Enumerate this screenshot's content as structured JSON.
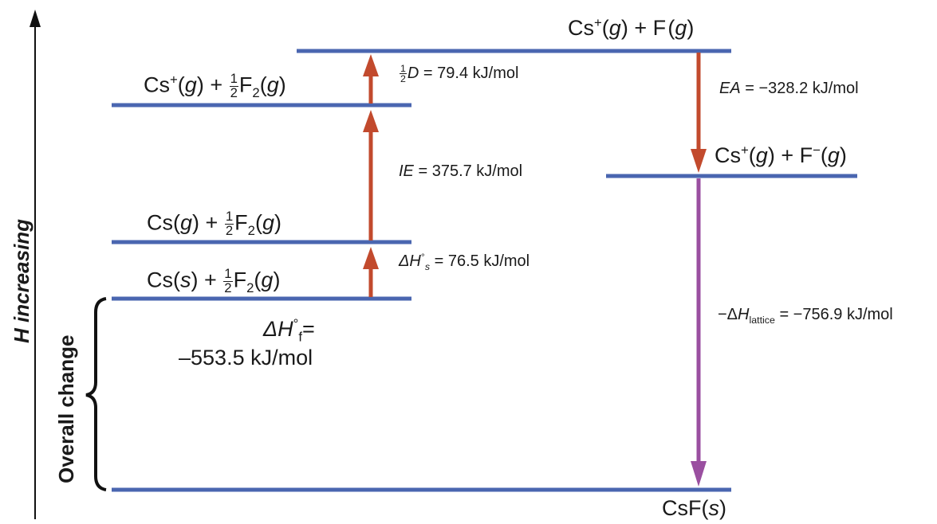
{
  "axis": {
    "label": "H increasing"
  },
  "brace": {
    "label": "Overall change"
  },
  "states": {
    "cs_g_f_g": {
      "species": "Cs",
      "charge": "+",
      "phase": "g",
      "plus": "+",
      "partner": "F",
      "partner_phase": "g"
    },
    "cs_plus_half_f2": {
      "species": "Cs",
      "charge": "+",
      "phase": "g",
      "plus": "+",
      "coef_num": "1",
      "coef_den": "2",
      "partner": "F",
      "partner_sub": "2",
      "partner_phase": "g"
    },
    "cs_plus_f_minus": {
      "species": "Cs",
      "charge": "+",
      "phase": "g",
      "plus": "+",
      "partner": "F",
      "partner_charge": "−",
      "partner_phase": "g"
    },
    "cs_g_half_f2": {
      "species": "Cs",
      "phase": "g",
      "plus": "+",
      "coef_num": "1",
      "coef_den": "2",
      "partner": "F",
      "partner_sub": "2",
      "partner_phase": "g"
    },
    "cs_s_half_f2": {
      "species": "Cs",
      "phase": "s",
      "plus": "+",
      "coef_num": "1",
      "coef_den": "2",
      "partner": "F",
      "partner_sub": "2",
      "partner_phase": "g"
    },
    "csf_s": {
      "species": "CsF",
      "phase": "s"
    }
  },
  "steps": {
    "dissociation": {
      "coef_num": "1",
      "coef_den": "2",
      "symbol": "D",
      "value": "= 79.4 kJ/mol"
    },
    "ionization": {
      "symbol": "IE",
      "value": "= 375.7 kJ/mol"
    },
    "sublimation": {
      "symbol": "ΔH",
      "sup": "°",
      "sub": "s",
      "value": "= 76.5 kJ/mol"
    },
    "electron_affinity": {
      "symbol": "EA",
      "value": "= −328.2 kJ/mol"
    },
    "lattice": {
      "prefix": "−Δ",
      "symbol": "H",
      "sub": "lattice",
      "value": "= −756.9 kJ/mol"
    },
    "formation": {
      "symbol": "ΔH",
      "sup": "°",
      "sub": "f",
      "eq": "=",
      "value": "–553.5 kJ/mol"
    }
  },
  "colors": {
    "level": "#4a66b0",
    "arrow_up": "#c24a2d",
    "arrow_down_red": "#c24a2d",
    "arrow_lattice": "#9a4fa0",
    "axis": "#111111"
  }
}
